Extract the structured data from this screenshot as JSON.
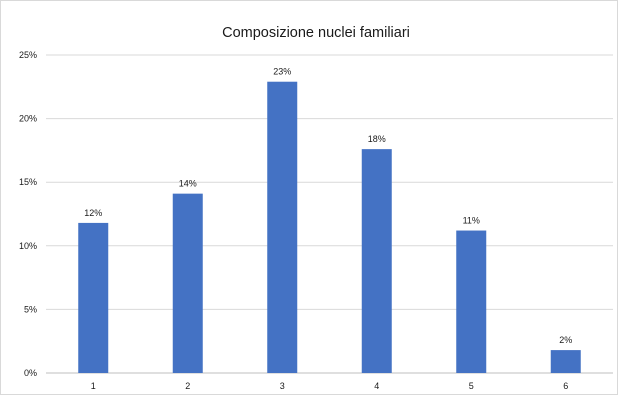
{
  "colors": {
    "bar": "#4472c4",
    "grid": "#d9d9d9",
    "text": "#1a1a1a"
  },
  "chart_data": {
    "type": "bar",
    "title": "Composizione nuclei familiari",
    "xlabel": "",
    "ylabel": "",
    "categories": [
      "1",
      "2",
      "3",
      "4",
      "5",
      "6"
    ],
    "values": [
      11.8,
      14.1,
      22.9,
      17.6,
      11.2,
      1.8
    ],
    "data_labels": [
      "12%",
      "14%",
      "23%",
      "18%",
      "11%",
      "2%"
    ],
    "ylim": [
      0,
      25
    ],
    "yticks": [
      0,
      5,
      10,
      15,
      20,
      25
    ],
    "ytick_labels": [
      "0%",
      "5%",
      "10%",
      "15%",
      "20%",
      "25%"
    ],
    "grid": true,
    "legend": "none"
  }
}
